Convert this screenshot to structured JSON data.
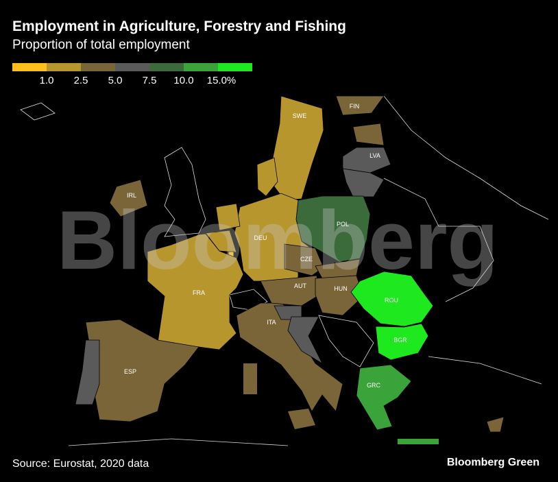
{
  "header": {
    "title": "Employment in Agriculture, Forestry and Fishing",
    "subtitle": "Proportion of total employment"
  },
  "legend": {
    "colors": [
      "#ffc01e",
      "#b8962e",
      "#7a6538",
      "#5a5a5a",
      "#3b6b3b",
      "#3aa33a",
      "#1ee81e"
    ],
    "ticks": [
      "1.0",
      "2.5",
      "5.0",
      "7.5",
      "10.0",
      "15.0%"
    ]
  },
  "countries": [
    {
      "code": "SWE",
      "label": "SWE",
      "bin": 1
    },
    {
      "code": "FIN",
      "label": "FIN",
      "bin": 2
    },
    {
      "code": "EST",
      "label": "",
      "bin": 2
    },
    {
      "code": "LVA",
      "label": "LVA",
      "bin": 3
    },
    {
      "code": "LTU",
      "label": "",
      "bin": 3
    },
    {
      "code": "POL",
      "label": "POL",
      "bin": 4
    },
    {
      "code": "DEU",
      "label": "DEU",
      "bin": 1
    },
    {
      "code": "DNK",
      "label": "",
      "bin": 1
    },
    {
      "code": "NLD",
      "label": "",
      "bin": 1
    },
    {
      "code": "BEL",
      "label": "",
      "bin": 1
    },
    {
      "code": "LUX",
      "label": "",
      "bin": 0
    },
    {
      "code": "IRL",
      "label": "IRL",
      "bin": 2
    },
    {
      "code": "FRA",
      "label": "FRA",
      "bin": 1
    },
    {
      "code": "ESP",
      "label": "ESP",
      "bin": 2
    },
    {
      "code": "PRT",
      "label": "",
      "bin": 3
    },
    {
      "code": "ITA",
      "label": "ITA",
      "bin": 2
    },
    {
      "code": "AUT",
      "label": "AUT",
      "bin": 2
    },
    {
      "code": "CZE",
      "label": "CZE",
      "bin": 2
    },
    {
      "code": "SVK",
      "label": "",
      "bin": 2
    },
    {
      "code": "HUN",
      "label": "HUN",
      "bin": 2
    },
    {
      "code": "SVN",
      "label": "",
      "bin": 3
    },
    {
      "code": "HRV",
      "label": "",
      "bin": 3
    },
    {
      "code": "ROU",
      "label": "ROU",
      "bin": 6
    },
    {
      "code": "BGR",
      "label": "BGR",
      "bin": 6
    },
    {
      "code": "GRC",
      "label": "GRC",
      "bin": 5
    },
    {
      "code": "CYP",
      "label": "",
      "bin": 2
    }
  ],
  "watermark": "Bloomberg",
  "footer": {
    "source": "Source: Eurostat, 2020 data",
    "brand": "Bloomberg Green"
  }
}
